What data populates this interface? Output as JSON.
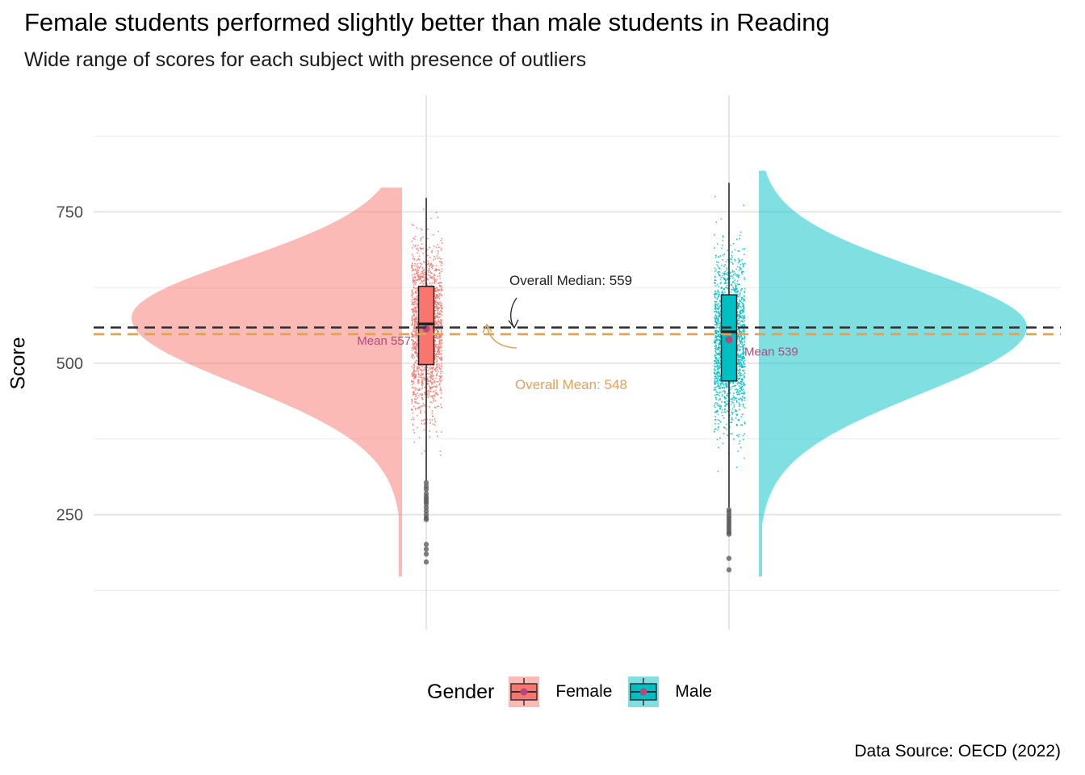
{
  "chart_data": {
    "type": "raincloud",
    "title": "Female students performed slightly better than male students in Reading",
    "subtitle": "Wide range of scores for each subject with presence of outliers",
    "xlabel": "",
    "ylabel": "Score",
    "caption": "Data Source: OECD (2022)",
    "categories": [
      "Female",
      "Male"
    ],
    "ylim": [
      75,
      885
    ],
    "yticks": [
      250,
      500,
      750
    ],
    "grid": true,
    "legend": {
      "title": "Gender",
      "position": "bottom"
    },
    "series": [
      {
        "name": "Female",
        "color": "#F8766D",
        "density_side": "left",
        "box": {
          "q1": 498,
          "median": 565,
          "q3": 627,
          "whisker_low": 306,
          "whisker_high": 773
        },
        "mean": 557,
        "mean_label": "Mean 557",
        "range": [
          148,
          790
        ],
        "density_mode": 575,
        "outliers": [
          303,
          297,
          292,
          285,
          280,
          276,
          272,
          268,
          262,
          256,
          250,
          245,
          242,
          201,
          193,
          185,
          172
        ]
      },
      {
        "name": "Male",
        "color": "#00BFC4",
        "density_side": "right",
        "box": {
          "q1": 471,
          "median": 552,
          "q3": 613,
          "whisker_low": 262,
          "whisker_high": 798
        },
        "mean": 539,
        "mean_label": "Mean 539",
        "range": [
          148,
          818
        ],
        "density_mode": 560,
        "outliers": [
          258,
          254,
          249,
          245,
          241,
          237,
          233,
          229,
          225,
          221,
          218,
          178,
          159
        ]
      }
    ],
    "reference_lines": [
      {
        "label": "Overall Median: 559",
        "value": 559,
        "color": "#333333",
        "style": "dashed"
      },
      {
        "label": "Overall Mean: 548",
        "value": 548,
        "color": "#E0A25A",
        "style": "dashed"
      }
    ],
    "colors": {
      "mean_point": "#B5497C",
      "median_line": "#333333",
      "mean_line": "#E0A25A"
    }
  }
}
